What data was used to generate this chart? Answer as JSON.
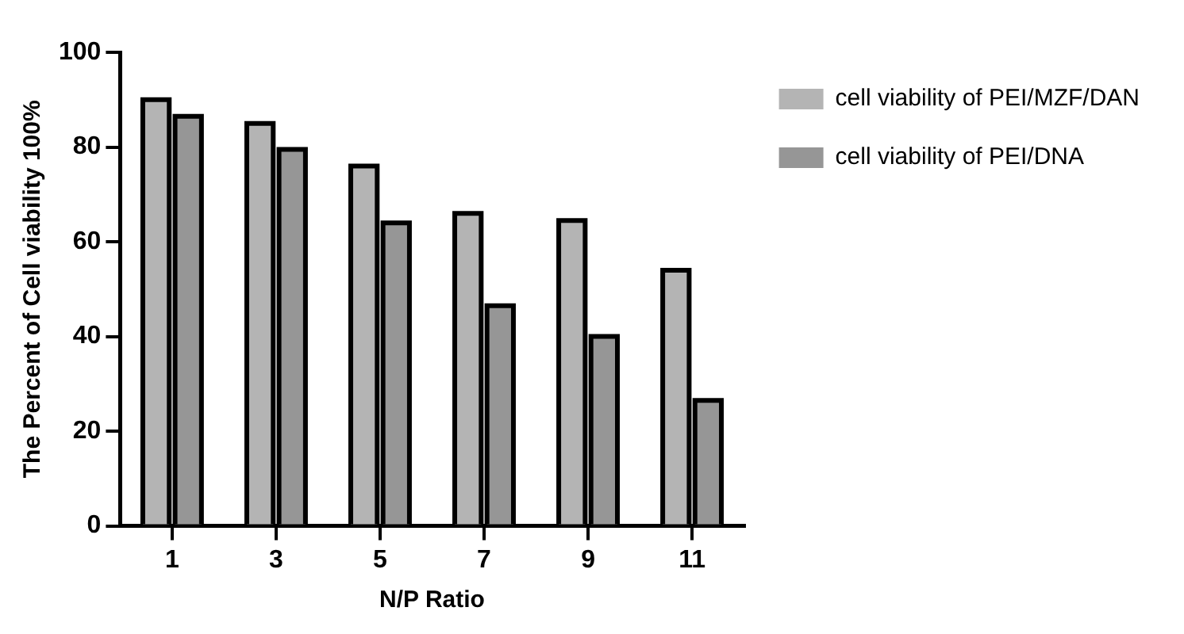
{
  "chart_data": {
    "type": "bar",
    "xlabel": "N/P Ratio",
    "ylabel": "The Percent of Cell viability 100%",
    "categories": [
      "1",
      "3",
      "5",
      "7",
      "9",
      "11"
    ],
    "series": [
      {
        "name": "cell viability of PEI/MZF/DAN",
        "color": "#b4b4b4",
        "values": [
          90,
          85,
          76,
          66,
          64.5,
          54
        ]
      },
      {
        "name": "cell viability of PEI/DNA",
        "color": "#969696",
        "values": [
          86.5,
          79.5,
          64,
          46.5,
          40,
          26.5
        ]
      }
    ],
    "ylim": [
      0,
      100
    ],
    "yticks": [
      0,
      20,
      40,
      60,
      80,
      100
    ],
    "grid": false,
    "legend": "right"
  }
}
